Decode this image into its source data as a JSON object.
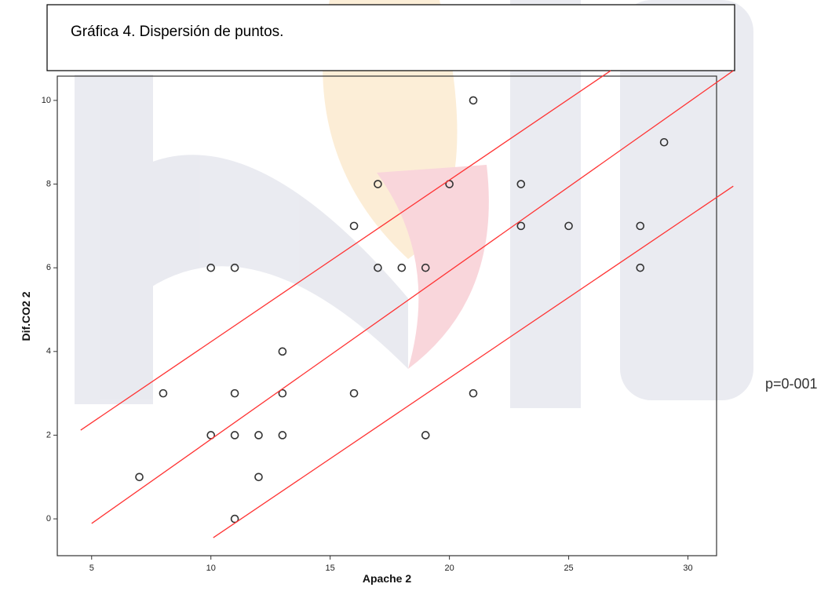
{
  "chart_data": {
    "type": "scatter",
    "title": "Gráfica 4. Dispersión de puntos.",
    "xlabel": "Apache 2",
    "ylabel": "Dif.CO2 2",
    "annotation": "p=0-001",
    "x": [
      7,
      8,
      10,
      11,
      10,
      11,
      11,
      11,
      12,
      12,
      13,
      13,
      13,
      16,
      16,
      17,
      17,
      18,
      19,
      19,
      20,
      21,
      21,
      23,
      23,
      25,
      28,
      28,
      29
    ],
    "values": [
      1,
      3,
      6,
      6,
      2,
      3,
      2,
      0,
      2,
      1,
      4,
      3,
      2,
      3,
      7,
      8,
      6,
      6,
      6,
      2,
      8,
      10,
      3,
      8,
      7,
      7,
      7,
      6,
      9
    ],
    "color": "#333333",
    "fit_lines": [
      {
        "x": [
          4.54,
          26.76
        ],
        "y": [
          2.12,
          10.71
        ]
      },
      {
        "x": [
          5,
          31.9
        ],
        "y": [
          -0.11,
          10.71
        ]
      },
      {
        "x": [
          10.1,
          31.9
        ],
        "y": [
          -0.45,
          7.95
        ]
      }
    ],
    "fit_color": "#ff3333",
    "xlim": [
      3.56,
      31.2
    ],
    "ylim": [
      -0.88,
      10.58
    ],
    "xticks": [
      5,
      10,
      15,
      20,
      25,
      30
    ],
    "yticks": [
      0,
      2,
      4,
      6,
      8,
      10
    ]
  }
}
